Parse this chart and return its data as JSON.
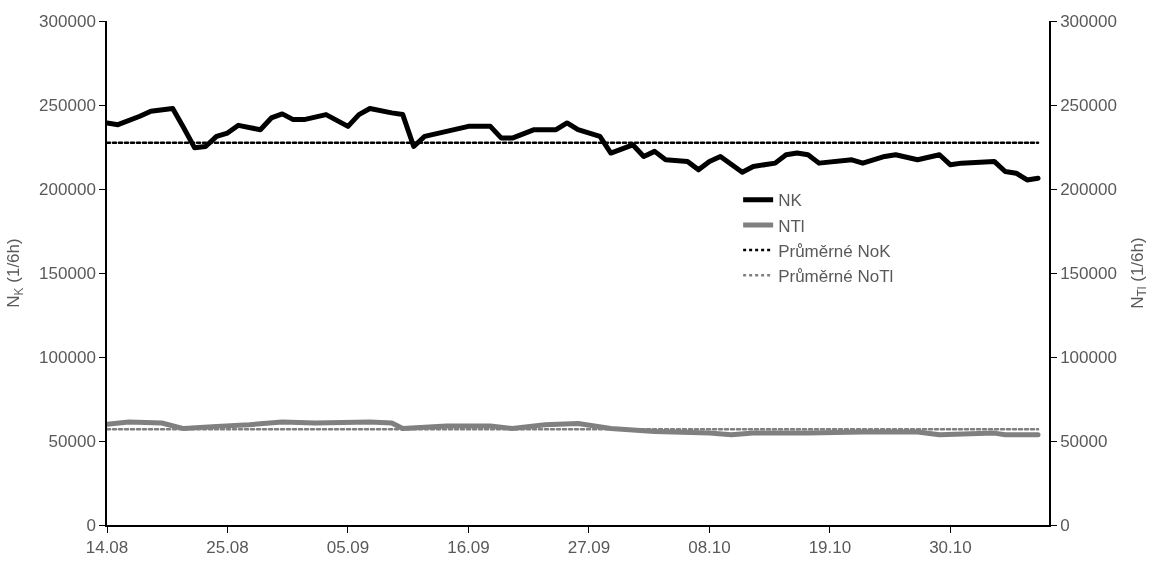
{
  "chart_data": {
    "type": "line",
    "ylabel": "N$_{K}$ (1/6h)",
    "y2label": "N$_{Tl}$ (1/6h)",
    "xlim": [
      "--08-14",
      "--11-08"
    ],
    "xticks": [
      {
        "value": "--08-14",
        "label": "14.08"
      },
      {
        "value": "--08-25",
        "label": "25.08"
      },
      {
        "value": "--09-05",
        "label": "05.09"
      },
      {
        "value": "--09-16",
        "label": "16.09"
      },
      {
        "value": "--09-27",
        "label": "27.09"
      },
      {
        "value": "--10-08",
        "label": "08.10"
      },
      {
        "value": "--10-19",
        "label": "19.10"
      },
      {
        "value": "--10-30",
        "label": "30.10"
      }
    ],
    "ylim": [
      0,
      300000
    ],
    "yticks": [
      0,
      50000,
      100000,
      150000,
      200000,
      250000,
      300000
    ],
    "y2lim": [
      0,
      300000
    ],
    "y2ticks": [
      0,
      50000,
      100000,
      150000,
      200000,
      250000,
      300000
    ],
    "legend": "right",
    "marker": "none",
    "series": [
      {
        "name": "NK",
        "color": "#000000",
        "line_style": "solid",
        "x": [
          "--08-14",
          "--08-15",
          "--08-17",
          "--08-18",
          "--08-20",
          "--08-21",
          "--08-22",
          "--08-23",
          "--08-24",
          "--08-25",
          "--08-26",
          "--08-28",
          "--08-29",
          "--08-30",
          "--08-31",
          "--09-01",
          "--09-03",
          "--09-05",
          "--09-06",
          "--09-07",
          "--09-09",
          "--09-10",
          "--09-11",
          "--09-12",
          "--09-14",
          "--09-16",
          "--09-18",
          "--09-19",
          "--09-20",
          "--09-22",
          "--09-24",
          "--09-25",
          "--09-26",
          "--09-28",
          "--09-29",
          "--10-01",
          "--10-02",
          "--10-03",
          "--10-04",
          "--10-06",
          "--10-07",
          "--10-08",
          "--10-09",
          "--10-11",
          "--10-12",
          "--10-14",
          "--10-15",
          "--10-16",
          "--10-17",
          "--10-18",
          "--10-21",
          "--10-22",
          "--10-24",
          "--10-25",
          "--10-27",
          "--10-29",
          "--10-30",
          "--10-31",
          "--11-03",
          "--11-04",
          "--11-05",
          "--11-06",
          "--11-07"
        ],
        "values": [
          239300,
          238300,
          243300,
          246300,
          247900,
          236500,
          224500,
          225300,
          231300,
          233300,
          237900,
          235300,
          242300,
          244700,
          241300,
          241300,
          244300,
          237300,
          244300,
          247900,
          245300,
          244300,
          225300,
          231300,
          234300,
          237300,
          237300,
          230300,
          230300,
          235300,
          235300,
          239300,
          235300,
          231300,
          221400,
          226300,
          219400,
          222400,
          217400,
          216400,
          211400,
          216400,
          219400,
          210000,
          213400,
          215400,
          220400,
          221400,
          220400,
          215400,
          217400,
          215400,
          219400,
          220400,
          217400,
          220400,
          214400,
          215400,
          216400,
          210400,
          209400,
          205400,
          206400
        ]
      },
      {
        "name": "NTl",
        "color": "#808080",
        "line_style": "solid",
        "axis": "y2",
        "x": [
          "--08-14",
          "--08-16",
          "--08-19",
          "--08-21",
          "--08-24",
          "--08-27",
          "--08-30",
          "--09-02",
          "--09-07",
          "--09-09",
          "--09-10",
          "--09-14",
          "--09-18",
          "--09-20",
          "--09-23",
          "--09-26",
          "--09-29",
          "--10-03",
          "--10-08",
          "--10-10",
          "--10-12",
          "--10-17",
          "--10-22",
          "--10-27",
          "--10-29",
          "--11-03",
          "--11-04",
          "--11-07"
        ],
        "values": [
          60000,
          61300,
          60700,
          57400,
          58700,
          59700,
          61300,
          60700,
          61300,
          60700,
          57400,
          59000,
          59000,
          57400,
          59700,
          60400,
          57400,
          55700,
          54700,
          53700,
          54700,
          54700,
          55400,
          55400,
          53700,
          54700,
          53700,
          53700
        ]
      },
      {
        "name": "Průměrné NoK",
        "color": "#000000",
        "line_style": "dotted",
        "x": [
          "--08-14",
          "--11-07"
        ],
        "values": [
          227500,
          227500
        ]
      },
      {
        "name": "Průměrné NoTl",
        "color": "#808080",
        "line_style": "dotted",
        "axis": "y2",
        "x": [
          "--08-14",
          "--11-07"
        ],
        "values": [
          57000,
          57000
        ]
      }
    ]
  }
}
